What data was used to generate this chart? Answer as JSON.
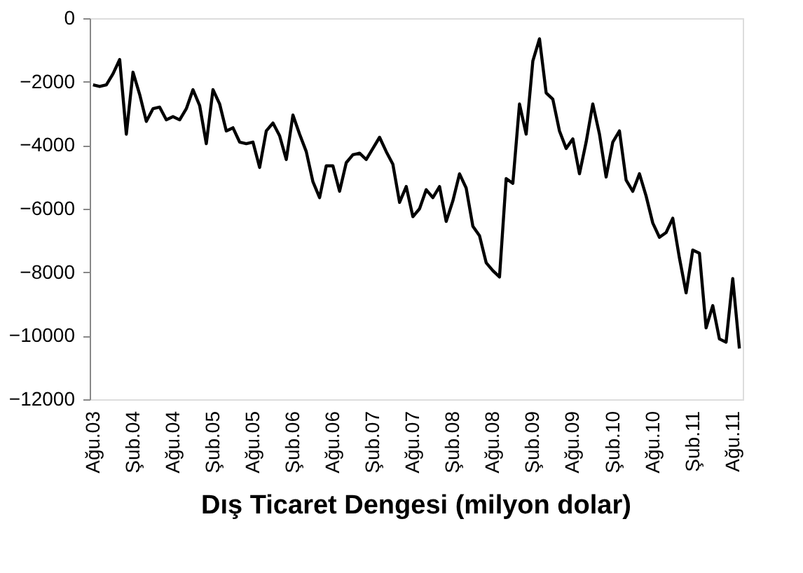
{
  "chart_data": {
    "type": "line",
    "title": "Dış Ticaret Dengesi (milyon dolar)",
    "categories": [
      "Ağu.03",
      null,
      null,
      null,
      null,
      null,
      "Şub.04",
      null,
      null,
      null,
      null,
      null,
      "Ağu.04",
      null,
      null,
      null,
      null,
      null,
      "Şub.05",
      null,
      null,
      null,
      null,
      null,
      "Ağu.05",
      null,
      null,
      null,
      null,
      null,
      "Şub.06",
      null,
      null,
      null,
      null,
      null,
      "Ağu.06",
      null,
      null,
      null,
      null,
      null,
      "Şub.07",
      null,
      null,
      null,
      null,
      null,
      "Ağu.07",
      null,
      null,
      null,
      null,
      null,
      "Şub.08",
      null,
      null,
      null,
      null,
      null,
      "Ağu.08",
      null,
      null,
      null,
      null,
      null,
      "Şub.09",
      null,
      null,
      null,
      null,
      null,
      "Ağu.09",
      null,
      null,
      null,
      null,
      null,
      "Şub.10",
      null,
      null,
      null,
      null,
      null,
      "Ağu.10",
      null,
      null,
      null,
      null,
      null,
      "Şub.11",
      null,
      null,
      null,
      null,
      null,
      "Ağu.11",
      null
    ],
    "series": [
      {
        "color": "#000000",
        "values": [
          -2100,
          -2150,
          -2100,
          -1750,
          -1300,
          -3650,
          -1700,
          -2400,
          -3250,
          -2850,
          -2800,
          -3200,
          -3100,
          -3200,
          -2850,
          -2250,
          -2750,
          -3950,
          -2250,
          -2700,
          -3550,
          -3450,
          -3900,
          -3950,
          -3900,
          -4700,
          -3550,
          -3300,
          -3700,
          -4450,
          -3050,
          -3650,
          -4200,
          -5150,
          -5650,
          -4650,
          -4650,
          -5450,
          -4550,
          -4300,
          -4250,
          -4450,
          -4100,
          -3750,
          -4200,
          -4600,
          -5800,
          -5300,
          -6250,
          -6000,
          -5400,
          -5650,
          -5300,
          -6400,
          -5750,
          -4900,
          -5350,
          -6550,
          -6850,
          -7700,
          -7950,
          -8150,
          -5050,
          -5200,
          -2700,
          -3650,
          -1350,
          -650,
          -2350,
          -2550,
          -3550,
          -4100,
          -3800,
          -4900,
          -3900,
          -2700,
          -3650,
          -5000,
          -3900,
          -3550,
          -5100,
          -5450,
          -4900,
          -5600,
          -6450,
          -6900,
          -6750,
          -6300,
          -7550,
          -8650,
          -7300,
          -7400,
          -9750,
          -9050,
          -10100,
          -10200,
          -8200,
          -10400
        ]
      }
    ],
    "ylim": [
      -12000,
      0
    ],
    "yticks": [
      -12000,
      -10000,
      -8000,
      -6000,
      -4000,
      -2000,
      0
    ],
    "grid": false,
    "legend": false,
    "marker": "none",
    "line_style": "solid"
  }
}
